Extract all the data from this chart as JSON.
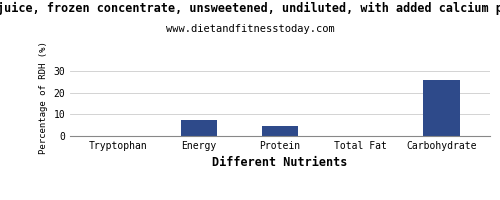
{
  "title": "juice, frozen concentrate, unsweetened, undiluted, with added calcium p",
  "subtitle": "www.dietandfitnesstoday.com",
  "categories": [
    "Tryptophan",
    "Energy",
    "Protein",
    "Total Fat",
    "Carbohydrate"
  ],
  "values": [
    0.0,
    7.2,
    4.5,
    0.2,
    26.0
  ],
  "bar_color": "#2e4a8a",
  "xlabel": "Different Nutrients",
  "ylabel": "Percentage of RDH (%)",
  "ylim": [
    0,
    35
  ],
  "yticks": [
    0,
    10,
    20,
    30
  ],
  "background_color": "#ffffff",
  "title_fontsize": 8.5,
  "subtitle_fontsize": 7.5,
  "tick_fontsize": 7,
  "xlabel_fontsize": 8.5,
  "ylabel_fontsize": 6.5
}
